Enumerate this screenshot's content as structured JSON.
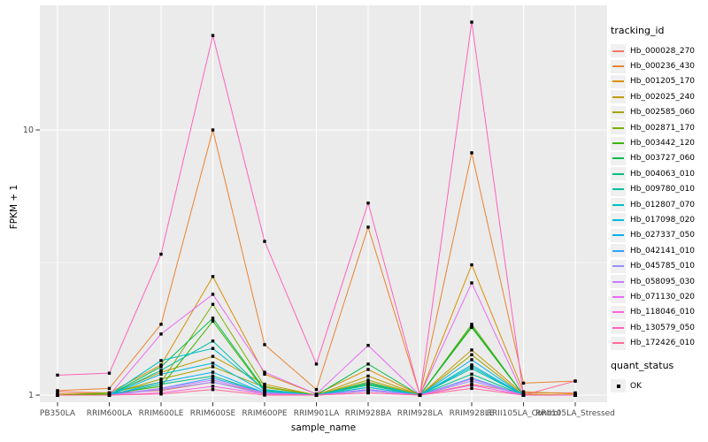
{
  "legend": {
    "tracking_title": "tracking_id",
    "quant_title": "quant_status",
    "quant_label": "OK",
    "quant_marker": "black-square"
  },
  "style": {
    "panel_background": "#EBEBEB",
    "gridline_color": "#FFFFFF",
    "axis_text_color": "#4D4D4D",
    "tick_mark_color": "#333333",
    "point_color": "#000000",
    "legend_key_background": "#F0F0F0"
  },
  "chart_data": {
    "type": "line",
    "title": "",
    "xlabel": "sample_name",
    "ylabel": "FPKM + 1",
    "y_scale": "log10",
    "ylim": [
      0.95,
      30.5
    ],
    "y_major_ticks": [
      1,
      10
    ],
    "y_tick_labels": [
      "1",
      "10"
    ],
    "y_minor_gridlines": [
      3.162
    ],
    "grid": "white major gridlines on grey panel",
    "legend_position": "right",
    "point_marker": "small black square (quant_status = OK)",
    "categories": [
      "PB350LA",
      "RRIM600LA",
      "RRIM600LE",
      "RRIM600SE",
      "RRIM600PE",
      "RRIM901LA",
      "RRIM928BA",
      "RRIM928LA",
      "RRIM928LE",
      "RRII105LA_Control",
      "RRII105LA_Stressed"
    ],
    "series": [
      {
        "name": "Hb_000028_270",
        "color": "#F8766D",
        "values": [
          1.03,
          1.02,
          1.04,
          1.12,
          1.02,
          1.0,
          1.04,
          1.0,
          1.1,
          1.02,
          1.02
        ]
      },
      {
        "name": "Hb_000236_430",
        "color": "#EA8331",
        "values": [
          1.04,
          1.06,
          1.85,
          10.0,
          1.55,
          1.05,
          4.3,
          1.0,
          8.2,
          1.11,
          1.13
        ]
      },
      {
        "name": "Hb_001205_170",
        "color": "#D89000",
        "values": [
          1.01,
          1.02,
          1.3,
          2.8,
          1.2,
          1.01,
          1.25,
          1.0,
          3.1,
          1.03,
          1.01
        ]
      },
      {
        "name": "Hb_002025_240",
        "color": "#C09B00",
        "values": [
          1.0,
          1.01,
          1.22,
          1.4,
          1.1,
          1.0,
          1.18,
          1.0,
          1.48,
          1.01,
          1.0
        ]
      },
      {
        "name": "Hb_002585_060",
        "color": "#A3A500",
        "values": [
          1.0,
          1.01,
          1.15,
          1.28,
          1.07,
          1.0,
          1.14,
          1.0,
          1.42,
          1.0,
          1.0
        ]
      },
      {
        "name": "Hb_002871_170",
        "color": "#7CAE00",
        "values": [
          1.0,
          1.02,
          1.12,
          2.2,
          1.08,
          1.0,
          1.12,
          1.0,
          1.85,
          1.0,
          1.0
        ]
      },
      {
        "name": "Hb_003442_120",
        "color": "#39B600",
        "values": [
          1.0,
          1.01,
          1.08,
          1.9,
          1.04,
          1.0,
          1.1,
          1.0,
          1.8,
          1.0,
          1.0
        ]
      },
      {
        "name": "Hb_003727_060",
        "color": "#00BB4E",
        "values": [
          1.0,
          1.0,
          1.28,
          1.95,
          1.05,
          1.0,
          1.31,
          1.0,
          1.82,
          1.0,
          1.0
        ]
      },
      {
        "name": "Hb_004063_010",
        "color": "#00BF7D",
        "values": [
          1.0,
          1.0,
          1.1,
          1.18,
          1.02,
          1.0,
          1.07,
          1.0,
          1.2,
          1.0,
          1.0
        ]
      },
      {
        "name": "Hb_009780_010",
        "color": "#00C1A2",
        "values": [
          1.0,
          1.0,
          1.24,
          1.6,
          1.04,
          1.0,
          1.09,
          1.0,
          1.26,
          1.0,
          1.0
        ]
      },
      {
        "name": "Hb_012807_070",
        "color": "#00BFC4",
        "values": [
          1.0,
          1.0,
          1.35,
          1.5,
          1.05,
          1.0,
          1.11,
          1.0,
          1.3,
          1.0,
          1.0
        ]
      },
      {
        "name": "Hb_017098_020",
        "color": "#00BAE0",
        "values": [
          1.0,
          1.0,
          1.2,
          1.32,
          1.03,
          1.0,
          1.07,
          1.0,
          1.28,
          1.0,
          1.0
        ]
      },
      {
        "name": "Hb_027337_050",
        "color": "#00B0F6",
        "values": [
          1.0,
          1.0,
          1.12,
          1.22,
          1.02,
          1.0,
          1.05,
          1.0,
          1.36,
          1.0,
          1.0
        ]
      },
      {
        "name": "Hb_042141_010",
        "color": "#35A2FF",
        "values": [
          1.0,
          1.0,
          1.06,
          1.16,
          1.02,
          1.0,
          1.05,
          1.0,
          1.16,
          1.0,
          1.0
        ]
      },
      {
        "name": "Hb_045785_010",
        "color": "#9590FF",
        "values": [
          1.0,
          1.0,
          1.05,
          1.12,
          1.01,
          1.0,
          1.04,
          1.0,
          1.13,
          1.0,
          1.0
        ]
      },
      {
        "name": "Hb_058095_030",
        "color": "#C77CFF",
        "values": [
          1.0,
          1.0,
          1.06,
          1.14,
          1.02,
          1.0,
          1.05,
          1.0,
          1.15,
          1.0,
          1.0
        ]
      },
      {
        "name": "Hb_071130_020",
        "color": "#E76BF3",
        "values": [
          1.0,
          1.0,
          1.7,
          2.4,
          1.22,
          1.01,
          1.54,
          1.0,
          2.65,
          1.0,
          1.0
        ]
      },
      {
        "name": "Hb_118046_010",
        "color": "#FA62DB",
        "values": [
          1.0,
          1.0,
          1.02,
          1.08,
          1.01,
          1.0,
          1.02,
          1.0,
          1.09,
          1.0,
          1.0
        ]
      },
      {
        "name": "Hb_130579_050",
        "color": "#FF62BC",
        "values": [
          1.19,
          1.21,
          3.4,
          22.7,
          3.8,
          1.31,
          5.3,
          1.0,
          25.5,
          1.0,
          1.0
        ]
      },
      {
        "name": "Hb_172426_010",
        "color": "#FF6A98",
        "values": [
          1.0,
          1.0,
          1.01,
          1.05,
          1.0,
          1.0,
          1.02,
          1.0,
          1.06,
          1.0,
          1.13
        ]
      }
    ]
  }
}
